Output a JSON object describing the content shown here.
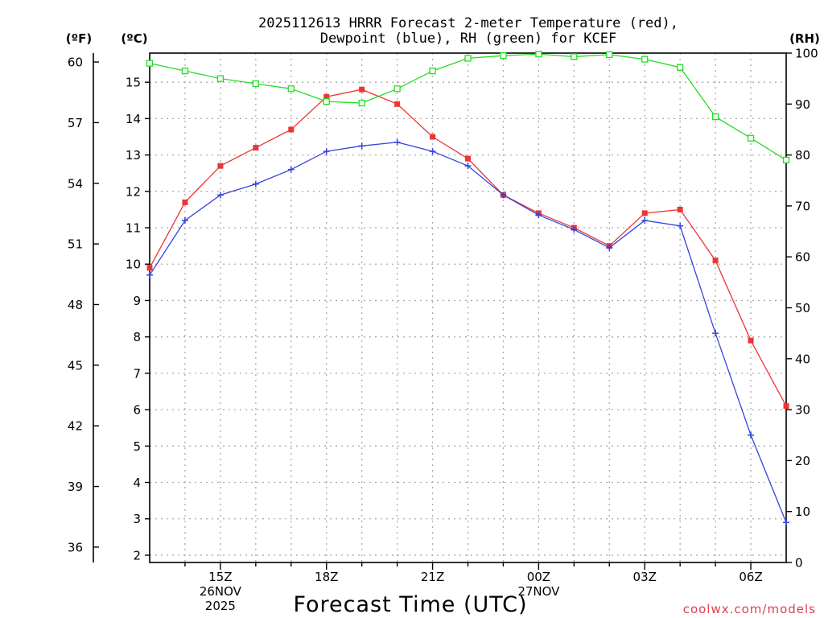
{
  "chart_data": {
    "type": "line",
    "title_line1": "2025112613 HRRR Forecast 2-meter Temperature (red),",
    "title_line2": "Dewpoint (blue), RH (green) for KCEF",
    "unit_f": "(ºF)",
    "unit_c": "(ºC)",
    "unit_rh": "(RH)",
    "xlabel": "Forecast Time (UTC)",
    "credit": "coolwx.com/models",
    "x_hours": [
      13,
      14,
      15,
      16,
      17,
      18,
      19,
      20,
      21,
      22,
      23,
      24,
      25,
      26,
      27,
      28,
      29,
      30,
      31
    ],
    "x_range": [
      13,
      31
    ],
    "ylim_c": [
      1.8,
      15.8
    ],
    "ylim_f": [
      35.24,
      60.44
    ],
    "ylim_rh": [
      0,
      100
    ],
    "yticks_c": [
      2,
      3,
      4,
      5,
      6,
      7,
      8,
      9,
      10,
      11,
      12,
      13,
      14,
      15
    ],
    "yticks_c_labels": [
      "2",
      "3",
      "4",
      "5",
      "6",
      "7",
      "8",
      "9",
      "10",
      "11",
      "12",
      "13",
      "14",
      "15"
    ],
    "yticks_f": [
      36,
      39,
      42,
      45,
      48,
      51,
      54,
      57,
      60
    ],
    "yticks_f_labels": [
      "36",
      "39",
      "42",
      "45",
      "48",
      "51",
      "54",
      "57",
      "60"
    ],
    "yticks_rh": [
      0,
      10,
      20,
      30,
      40,
      50,
      60,
      70,
      80,
      90,
      100
    ],
    "yticks_rh_labels": [
      "0",
      "10",
      "20",
      "30",
      "40",
      "50",
      "60",
      "70",
      "80",
      "90",
      "100"
    ],
    "xticks": [
      {
        "hour": 15,
        "lines": [
          "15Z",
          "26NOV",
          "2025"
        ]
      },
      {
        "hour": 18,
        "lines": [
          "18Z"
        ]
      },
      {
        "hour": 21,
        "lines": [
          "21Z"
        ]
      },
      {
        "hour": 24,
        "lines": [
          "00Z",
          "27NOV"
        ]
      },
      {
        "hour": 27,
        "lines": [
          "03Z"
        ]
      },
      {
        "hour": 30,
        "lines": [
          "06Z"
        ]
      }
    ],
    "series": [
      {
        "name": "Temperature",
        "axis": "c",
        "color": "#ee3333",
        "marker": "filled-square",
        "values": [
          9.9,
          11.7,
          12.7,
          13.2,
          13.7,
          14.6,
          14.8,
          14.4,
          13.5,
          12.9,
          11.9,
          11.4,
          11.0,
          10.5,
          11.4,
          11.5,
          10.1,
          7.9,
          6.1
        ]
      },
      {
        "name": "Dewpoint",
        "axis": "c",
        "color": "#3344dd",
        "marker": "plus",
        "values": [
          9.7,
          11.2,
          11.9,
          12.2,
          12.6,
          13.1,
          13.25,
          13.35,
          13.1,
          12.7,
          11.9,
          11.35,
          10.95,
          10.45,
          11.2,
          11.05,
          8.1,
          5.3,
          2.9
        ]
      },
      {
        "name": "RH",
        "axis": "rh",
        "color": "#22dd22",
        "marker": "open-square",
        "values": [
          98,
          96.5,
          95,
          94,
          93,
          90.5,
          90.2,
          93,
          96.5,
          99,
          99.5,
          99.8,
          99.3,
          99.7,
          98.8,
          97.2,
          87.5,
          83.3,
          79
        ]
      }
    ]
  }
}
